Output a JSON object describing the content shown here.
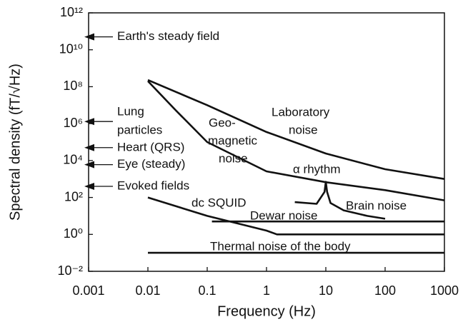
{
  "chart_data": {
    "type": "line",
    "xlabel": "Frequency (Hz)",
    "ylabel": "Spectral density (fT/√Hz)",
    "xscale": "log",
    "yscale": "log",
    "xlim": [
      0.001,
      1000
    ],
    "ylim": [
      0.01,
      1000000000000
    ],
    "xticks": [
      0.001,
      0.01,
      0.1,
      1,
      10,
      100,
      1000
    ],
    "yticks": [
      {
        "value": 0.01,
        "label": "10⁻²"
      },
      {
        "value": 1,
        "label": "10⁰"
      },
      {
        "value": 100,
        "label": "10²"
      },
      {
        "value": 10000,
        "label": "10⁴"
      },
      {
        "value": 1000000,
        "label": "10⁶"
      },
      {
        "value": 100000000,
        "label": "10⁸"
      },
      {
        "value": 10000000000,
        "label": "10¹⁰"
      },
      {
        "value": 1000000000000,
        "label": "10¹²"
      }
    ],
    "color": "#111111",
    "series": [
      {
        "x": [
          0.01,
          0.1,
          1,
          10,
          100,
          1000
        ],
        "values": [
          230000000,
          10000000,
          350000,
          24000,
          3400,
          1000
        ]
      },
      {
        "x": [
          0.01,
          0.03,
          0.1,
          1,
          10,
          100,
          1000
        ],
        "values": [
          200000000,
          5000000,
          100000,
          2600,
          670,
          250,
          70
        ]
      },
      {
        "x": [
          0.01,
          0.1,
          1,
          1.5,
          1000
        ],
        "values": [
          100,
          10,
          1.6,
          1,
          1
        ]
      },
      {
        "x": [
          0.12,
          1000
        ],
        "values": [
          5,
          5
        ]
      },
      {
        "x": [
          0.01,
          1000
        ],
        "values": [
          0.1,
          0.1
        ]
      },
      {
        "x": [
          3,
          7,
          9.5,
          10,
          10.5,
          12,
          20,
          50,
          100
        ],
        "values": [
          56,
          45,
          200,
          700,
          200,
          50,
          20,
          10,
          7
        ]
      }
    ],
    "markers": [
      {
        "label": [
          "Earth's steady field"
        ],
        "value": 50000000000
      },
      {
        "label": [
          "Lung",
          "particles"
        ],
        "value": 1300000
      },
      {
        "label": [
          "Heart (QRS)"
        ],
        "value": 50000
      },
      {
        "label": [
          "Eye (steady)"
        ],
        "value": 6000
      },
      {
        "label": [
          "Evoked fields"
        ],
        "value": 400
      }
    ],
    "annotations": [
      [
        "Laboratory",
        "noise"
      ],
      [
        "Geo-",
        "magnetic",
        "noise"
      ],
      [
        "α rhythm"
      ],
      [
        "Brain noise"
      ],
      [
        "dc SQUID"
      ],
      [
        "Dewar noise"
      ],
      [
        "Thermal noise of the body"
      ]
    ]
  }
}
